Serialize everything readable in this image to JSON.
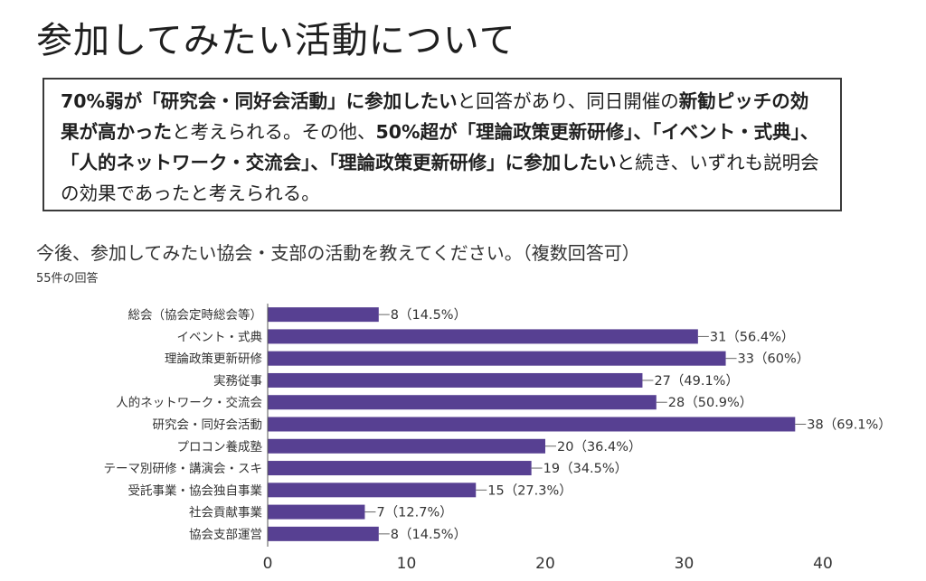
{
  "title": "参加してみたい活動について",
  "summary": [
    {
      "text": "70%弱が「研究会・同好会活動」に参加したい",
      "bold": true
    },
    {
      "text": "と回答があり、同日開催の",
      "bold": false
    },
    {
      "text": "新勧ピッチの効果が高かった",
      "bold": true
    },
    {
      "text": "と考えられる。その他、",
      "bold": false
    },
    {
      "text": "50%超が「理論政策更新研修」、「イベント・式典」、「人的ネットワーク・交流会」、「理論政策更新研修」に参加したい",
      "bold": true
    },
    {
      "text": "と続き、いずれも説明会の効果であったと考えられる。",
      "bold": false
    }
  ],
  "question": "今後、参加してみたい協会・支部の活動を教えてください。（複数回答可）",
  "response_count": "55件の回答",
  "colors": {
    "bar": "#574092",
    "axis": "#555555",
    "text": "#333333"
  },
  "chart_data": {
    "type": "bar",
    "orientation": "horizontal",
    "categories": [
      "総会（協会定時総会等）",
      "イベント・式典",
      "理論政策更新研修",
      "実務従事",
      "人的ネットワーク・交流会",
      "研究会・同好会活動",
      "プロコン養成塾",
      "テーマ別研修・講演会・スキ",
      "受託事業・協会独自事業",
      "社会貢献事業",
      "協会支部運営"
    ],
    "values": [
      8,
      31,
      33,
      27,
      28,
      38,
      20,
      19,
      15,
      7,
      8
    ],
    "data_labels": [
      "8（14.5%）",
      "31（56.4%）",
      "33（60%）",
      "27（49.1%）",
      "28（50.9%）",
      "38（69.1%）",
      "20（36.4%）",
      "19（34.5%）",
      "15（27.3%）",
      "7（12.7%）",
      "8（14.5%）"
    ],
    "xlim": [
      0,
      40
    ],
    "xticks": [
      0,
      10,
      20,
      30,
      40
    ],
    "grid": false
  }
}
